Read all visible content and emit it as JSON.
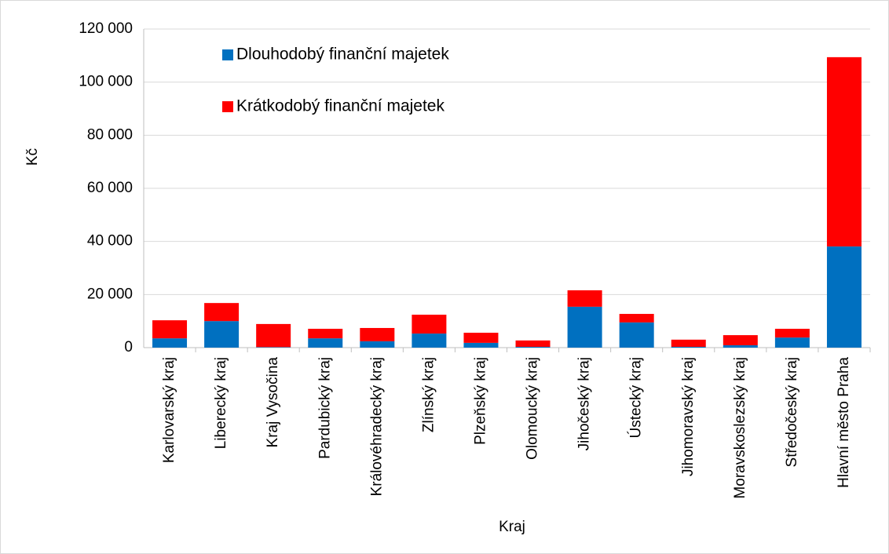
{
  "chart_data": {
    "type": "stacked_bar",
    "x_label": "Kraj",
    "y_label": "Kč",
    "categories": [
      "Karlovarský kraj",
      "Liberecký kraj",
      "Kraj Vysočina",
      "Pardubický kraj",
      "Královéhradecký kraj",
      "Zlínský kraj",
      "Plzeňský kraj",
      "Olomoucký kraj",
      "Jihočeský kraj",
      "Ústecký kraj",
      "Jihomoravský kraj",
      "Moravskoslezský kraj",
      "Středočeský kraj",
      "Hlavní město Praha"
    ],
    "series": [
      {
        "name": "Dlouhodobý finanční majetek",
        "color": "#0070c0",
        "values": [
          3500,
          10000,
          200,
          3500,
          2400,
          5300,
          1800,
          300,
          15400,
          9500,
          300,
          900,
          3800,
          38100
        ]
      },
      {
        "name": "Krátkodobý finanční majetek",
        "color": "#ff0000",
        "values": [
          6800,
          6800,
          8700,
          3600,
          5000,
          7100,
          3800,
          2400,
          6200,
          3200,
          2700,
          3800,
          3300,
          71300
        ]
      }
    ],
    "ylim": [
      0,
      120000
    ],
    "yticks": [
      0,
      {
        "value": 20000,
        "label": "20 000"
      },
      {
        "value": 40000,
        "label": "40 000"
      },
      {
        "value": 60000,
        "label": "60 000"
      },
      {
        "value": 80000,
        "label": "80 000"
      },
      {
        "value": 100000,
        "label": "100 000"
      },
      {
        "value": 120000,
        "label": "120 000"
      }
    ],
    "grid": true
  }
}
